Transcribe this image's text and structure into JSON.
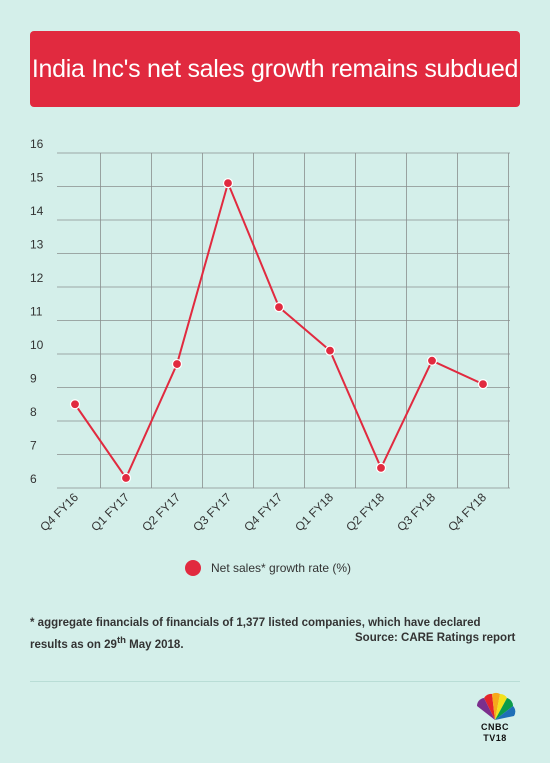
{
  "header": {
    "title": "India Inc's net sales growth remains subdued"
  },
  "chart_data": {
    "type": "line",
    "title": "India Inc's net sales growth remains subdued",
    "categories": [
      "Q4 FY16",
      "Q1 FY17",
      "Q2 FY17",
      "Q3 FY17",
      "Q4 FY17",
      "Q1 FY18",
      "Q2 FY18",
      "Q3 FY18",
      "Q4 FY18"
    ],
    "series": [
      {
        "name": "Net sales* growth rate (%)",
        "values": [
          8.5,
          6.3,
          9.7,
          15.1,
          11.4,
          10.1,
          6.6,
          9.8,
          9.1
        ]
      }
    ],
    "yticks": [
      "6",
      "7",
      "8",
      "9",
      "10",
      "11",
      "12",
      "13",
      "14",
      "15",
      "16"
    ],
    "ylim": [
      6,
      16
    ],
    "grid": true,
    "legend": "bottom-center"
  },
  "legend": {
    "label": "Net sales* growth rate (%)"
  },
  "footnote": {
    "text": "* aggregate financials of  financials of 1,377 listed companies, which have declared results as on 29",
    "sup": "th",
    "tail": " May 2018.",
    "source": "Source: CARE Ratings report"
  },
  "logo": {
    "line1": "CNBC",
    "line2": "TV18"
  },
  "colors": {
    "accent": "#e12a3f",
    "background": "#d4efea",
    "grid": "#8a8f8e"
  }
}
